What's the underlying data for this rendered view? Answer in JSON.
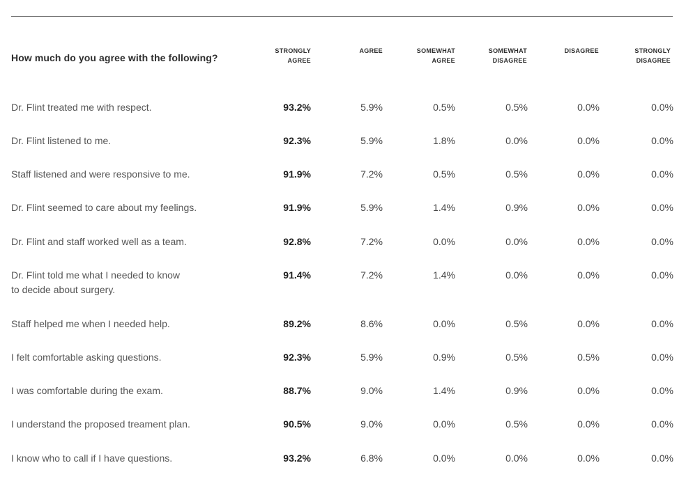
{
  "question": "How much do you agree with the following?",
  "columns": [
    "STRONGLY\nAGREE",
    "AGREE",
    "SOMEWHAT\nAGREE",
    "SOMEWHAT\nDISAGREE",
    "DISAGREE",
    "STRONGLY\nDISAGREE"
  ],
  "rows": [
    {
      "statement": "Dr. Flint treated me with respect.",
      "values": [
        "93.2%",
        "5.9%",
        "0.5%",
        "0.5%",
        "0.0%",
        "0.0%"
      ]
    },
    {
      "statement": "Dr. Flint listened to me.",
      "values": [
        "92.3%",
        "5.9%",
        "1.8%",
        "0.0%",
        "0.0%",
        "0.0%"
      ]
    },
    {
      "statement": "Staff listened and were responsive to me.",
      "values": [
        "91.9%",
        "7.2%",
        "0.5%",
        "0.5%",
        "0.0%",
        "0.0%"
      ]
    },
    {
      "statement": "Dr. Flint seemed to care about my feelings.",
      "values": [
        "91.9%",
        "5.9%",
        "1.4%",
        "0.9%",
        "0.0%",
        "0.0%"
      ]
    },
    {
      "statement": "Dr. Flint and staff worked well as a team.",
      "values": [
        "92.8%",
        "7.2%",
        "0.0%",
        "0.0%",
        "0.0%",
        "0.0%"
      ]
    },
    {
      "statement": "Dr. Flint told me what I needed to know\nto decide about surgery.",
      "values": [
        "91.4%",
        "7.2%",
        "1.4%",
        "0.0%",
        "0.0%",
        "0.0%"
      ]
    },
    {
      "statement": "Staff helped me when I needed help.",
      "values": [
        "89.2%",
        "8.6%",
        "0.0%",
        "0.5%",
        "0.0%",
        "0.0%"
      ]
    },
    {
      "statement": "I felt comfortable asking questions.",
      "values": [
        "92.3%",
        "5.9%",
        "0.9%",
        "0.5%",
        "0.5%",
        "0.0%"
      ]
    },
    {
      "statement": "I was comfortable during the exam.",
      "values": [
        "88.7%",
        "9.0%",
        "1.4%",
        "0.9%",
        "0.0%",
        "0.0%"
      ]
    },
    {
      "statement": "I understand the proposed treament plan.",
      "values": [
        "90.5%",
        "9.0%",
        "0.0%",
        "0.5%",
        "0.0%",
        "0.0%"
      ]
    },
    {
      "statement": "I know who to call if I have questions.",
      "values": [
        "93.2%",
        "6.8%",
        "0.0%",
        "0.0%",
        "0.0%",
        "0.0%"
      ]
    }
  ]
}
